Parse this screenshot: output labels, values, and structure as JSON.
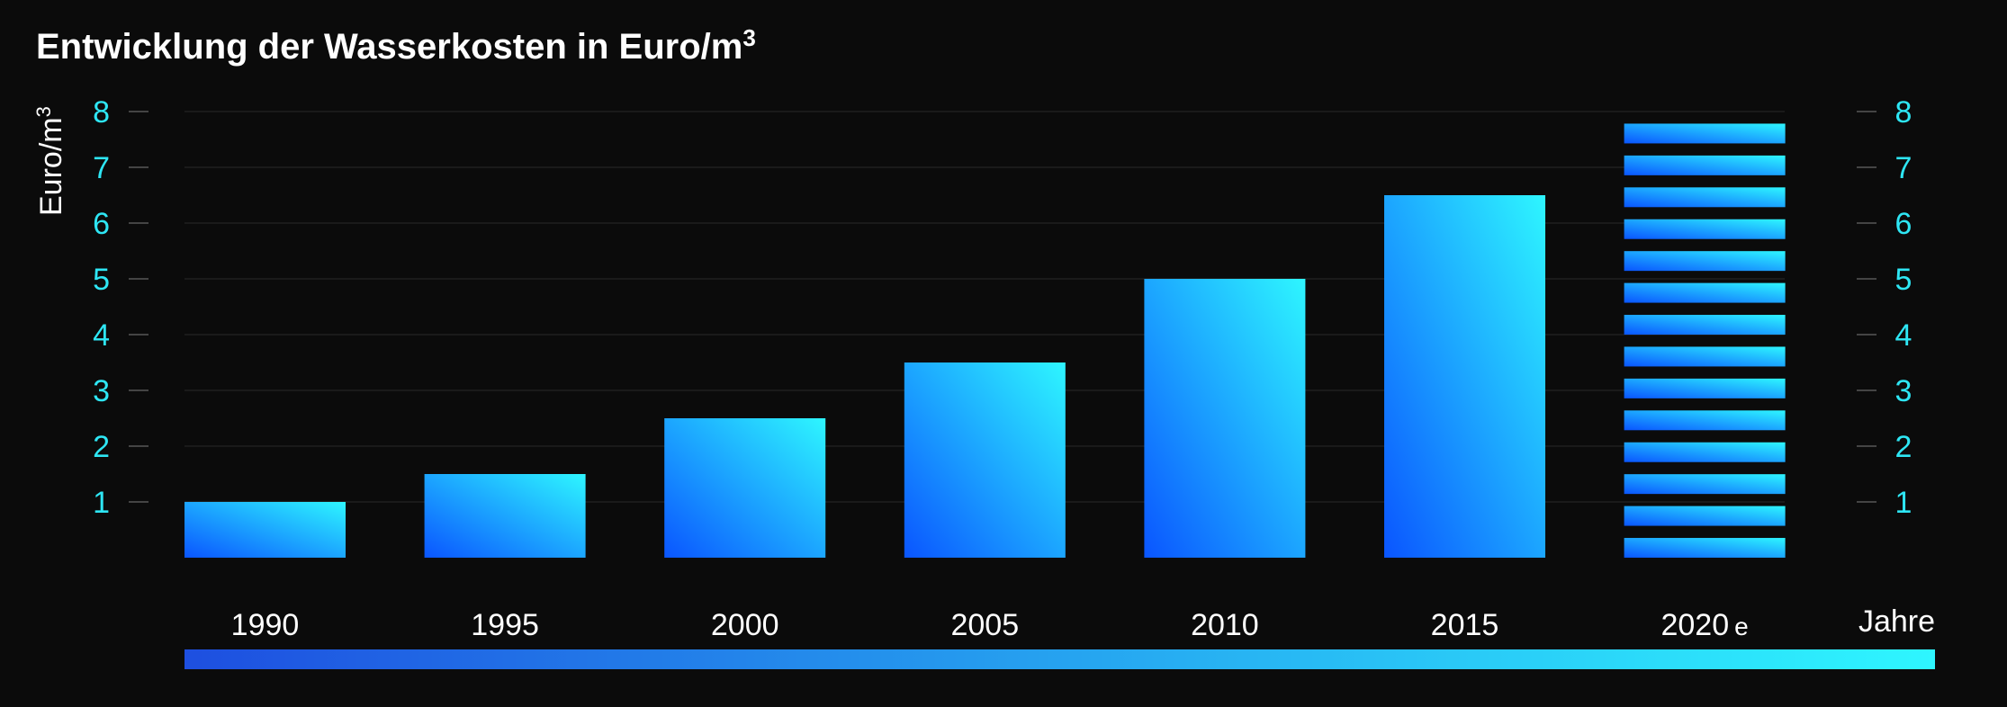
{
  "chart_data": {
    "type": "bar",
    "title": "Entwicklung der Wasserkosten in Euro/m",
    "title_superscript": "3",
    "ylabel": "Euro/m",
    "ylabel_superscript": "3",
    "xlabel": "Jahre",
    "categories": [
      "1990",
      "1995",
      "2000",
      "2005",
      "2010",
      "2015",
      "2020"
    ],
    "category_suffixes": [
      "",
      "",
      "",
      "",
      "",
      "",
      "e"
    ],
    "values": [
      1,
      1.5,
      2.5,
      3.5,
      5,
      6.5,
      8
    ],
    "estimated": [
      false,
      false,
      false,
      false,
      false,
      false,
      true
    ],
    "ylim": [
      0,
      8
    ],
    "yticks_left": [
      1,
      2,
      3,
      4,
      5,
      6,
      7,
      8
    ],
    "yticks_right": [
      1,
      2,
      3,
      4,
      5,
      6,
      7,
      8
    ],
    "grid": true,
    "colors": {
      "background": "#0b0b0b",
      "bar_dark": "#0a55ff",
      "bar_light": "#2ef6ff",
      "tick_text": "#2ee6f4",
      "grid": "#2a2a2a",
      "timeline_start": "#1e4fe0",
      "timeline_end": "#2ef6ff"
    }
  }
}
